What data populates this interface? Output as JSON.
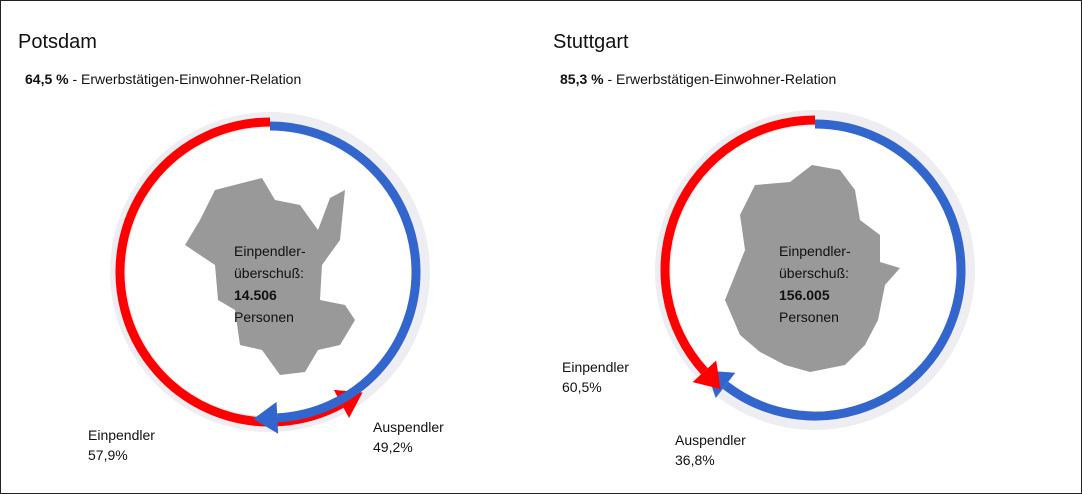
{
  "chart_data": [
    {
      "type": "ring",
      "title": "Potsdam",
      "ratio": "64,5 %",
      "ratio_text": "- Erwerbstätigen-Einwohner-Relation",
      "center_lines": [
        "Einpendler-",
        "überschuß:"
      ],
      "surplus": "14.506",
      "surplus_unit": "Personen",
      "series": [
        {
          "name": "Einpendler",
          "color": "#ff0000",
          "values": [
            57.9
          ],
          "value_labels": [
            "57,9%"
          ]
        },
        {
          "name": "Auspendler",
          "color": "#3366cc",
          "values": [
            49.2
          ],
          "value_labels": [
            "49,2%"
          ]
        }
      ]
    },
    {
      "type": "ring",
      "title": "Stuttgart",
      "ratio": "85,3 %",
      "ratio_text": "- Erwerbstätigen-Einwohner-Relation",
      "center_lines": [
        "Einpendler-",
        "überschuß:"
      ],
      "surplus": "156.005",
      "surplus_unit": "Personen",
      "series": [
        {
          "name": "Einpendler",
          "color": "#3366cc",
          "values": [
            60.5
          ],
          "value_labels": [
            "60,5%"
          ]
        },
        {
          "name": "Auspendler",
          "color": "#ff0000",
          "values": [
            36.8
          ],
          "value_labels": [
            "36,8%"
          ]
        }
      ]
    }
  ]
}
